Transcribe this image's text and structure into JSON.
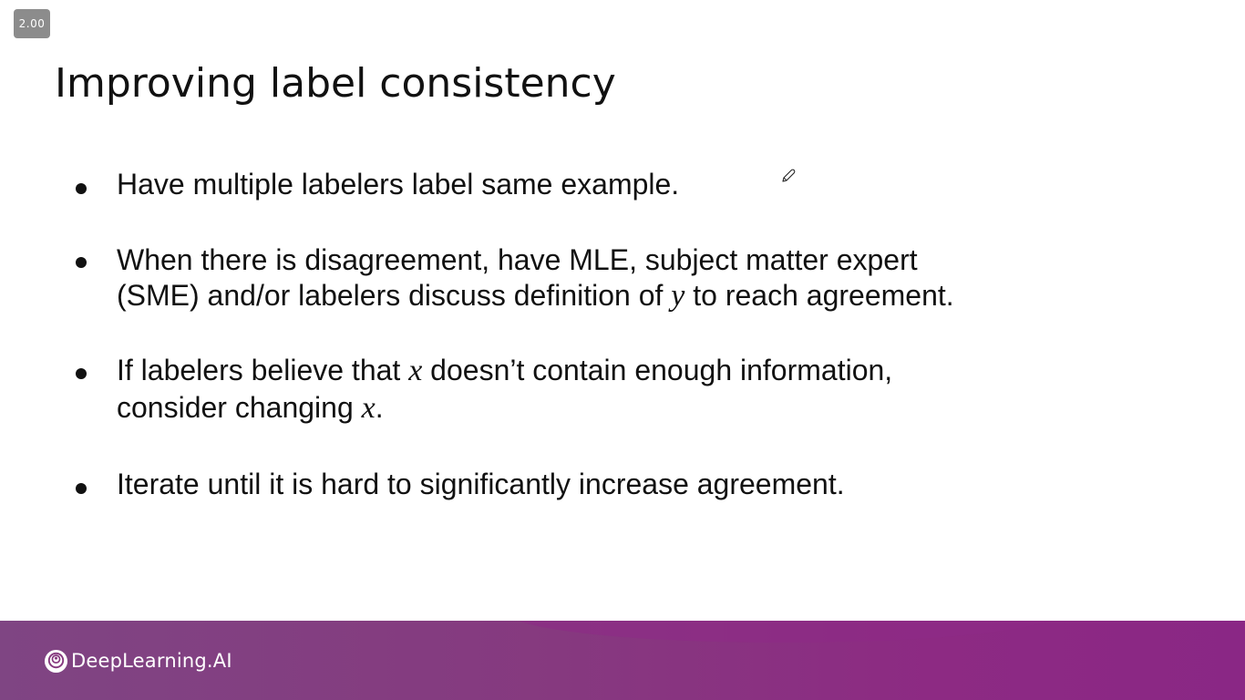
{
  "player": {
    "playback_speed": "2.00"
  },
  "slide": {
    "title": "Improving label consistency",
    "bullets": [
      {
        "lines": [
          [
            {
              "t": "Have multiple labelers label same example."
            }
          ]
        ]
      },
      {
        "lines": [
          [
            {
              "t": "When there is disagreement, have MLE, subject matter expert"
            }
          ],
          [
            {
              "t": "(SME) and/or labelers discuss definition of "
            },
            {
              "v": "y"
            },
            {
              "t": " to reach agreement."
            }
          ]
        ]
      },
      {
        "lines": [
          [
            {
              "t": "If labelers believe that "
            },
            {
              "v": "x"
            },
            {
              "t": " doesn’t contain enough information,"
            }
          ],
          [
            {
              "t": "consider changing "
            },
            {
              "v": "x"
            },
            {
              "t": "."
            }
          ]
        ]
      },
      {
        "lines": [
          [
            {
              "t": "Iterate until it is hard to significantly increase agreement."
            }
          ]
        ]
      }
    ]
  },
  "footer": {
    "brand_name": "DeepLearning.AI",
    "logo_icon": "deeplearning-ai-logo-icon"
  },
  "overlay": {
    "cursor_icon": "pen-cursor-icon"
  },
  "colors": {
    "text": "#111111",
    "footer_left": "#7f4583",
    "footer_right": "#8a2785",
    "badge": "#8c8c8c"
  }
}
